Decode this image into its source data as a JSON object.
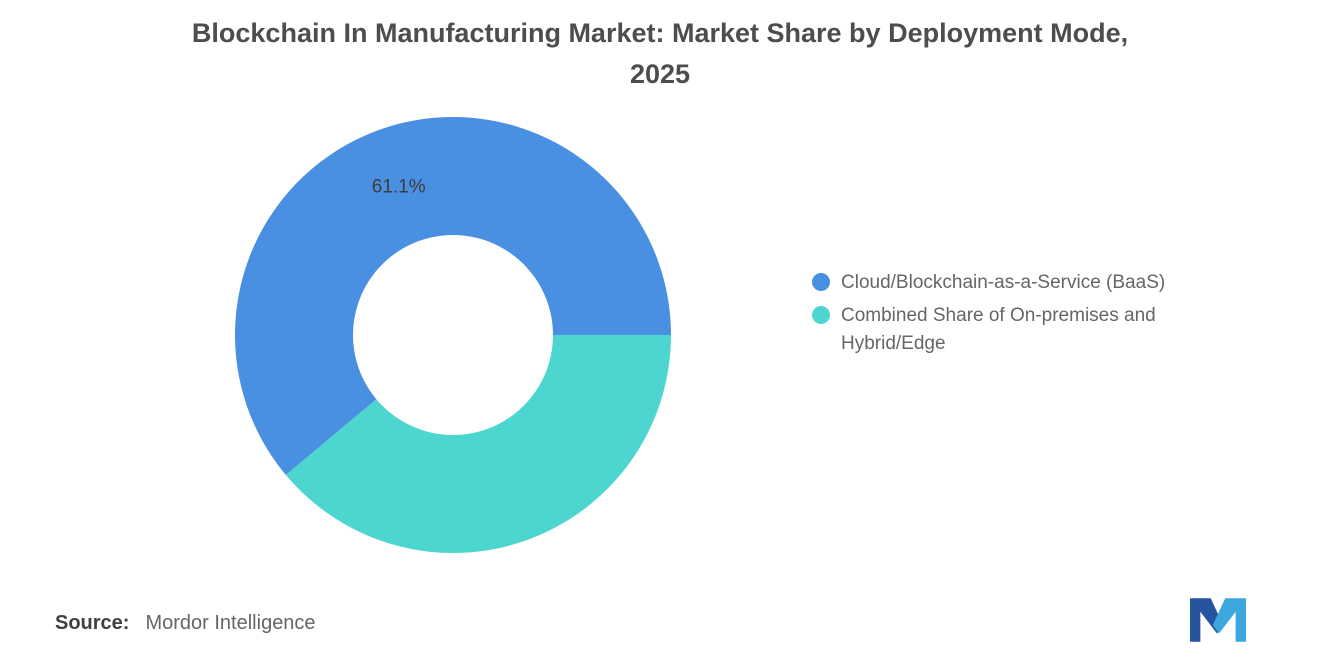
{
  "title": {
    "line1": "Blockchain In Manufacturing Market: Market Share by Deployment Mode,",
    "line2": "2025"
  },
  "chart_data": {
    "type": "pie",
    "subtype": "donut",
    "title": "Blockchain In Manufacturing Market: Market Share by Deployment Mode, 2025",
    "slices": [
      {
        "label": "Cloud/Blockchain-as-a-Service (BaaS)",
        "value": 61.1,
        "data_label": "61.1%",
        "color": "#4990E2"
      },
      {
        "label": "Combined Share of On-premises and Hybrid/Edge",
        "value": 38.9,
        "data_label": "",
        "color": "#4DD5D0"
      }
    ],
    "start_angle_deg": 0,
    "direction": "counterclockwise",
    "inner_radius": 100,
    "outer_radius": 218,
    "legend_position": "right",
    "data_label_color": "#3D3D3D",
    "background": "#FFFFFF"
  },
  "legend": {
    "items": [
      {
        "label": "Cloud/Blockchain-as-a-Service (BaaS)",
        "color": "#4990E2"
      },
      {
        "label": "Combined Share of On-premises and Hybrid/Edge",
        "color": "#4DD5D0"
      }
    ]
  },
  "footer": {
    "source_label": "Source:",
    "source_value": "Mordor Intelligence"
  },
  "logo": {
    "name": "mordor-intelligence-logo",
    "colors": {
      "dark": "#27549E",
      "light": "#3BA7DC"
    }
  }
}
